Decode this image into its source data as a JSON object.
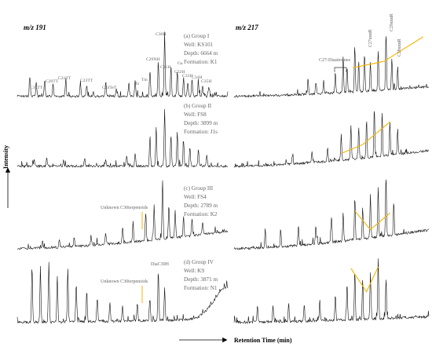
{
  "chart_data": {
    "type": "line",
    "panel_titles": {
      "left": "m/z 191",
      "right": "m/z 217"
    },
    "ylabel": "Intensity",
    "xlabel": "Retention Time (min)",
    "colors": {
      "trace": "#111111",
      "highlight": "#f4b400",
      "text": "#666666"
    },
    "groups": [
      {
        "id": "a",
        "info": [
          "(a)  Group I",
          "Well: KS101",
          "Depth: 6664 m",
          "Formation: K1"
        ],
        "left_peaks": [
          {
            "x": 0.06,
            "h": 0.3
          },
          {
            "x": 0.09,
            "h": 0.22
          },
          {
            "x": 0.13,
            "h": 0.26
          },
          {
            "x": 0.17,
            "h": 0.2
          },
          {
            "x": 0.23,
            "h": 0.24
          },
          {
            "x": 0.3,
            "h": 0.22
          },
          {
            "x": 0.33,
            "h": 0.18
          },
          {
            "x": 0.42,
            "h": 0.16
          },
          {
            "x": 0.47,
            "h": 0.12
          },
          {
            "x": 0.53,
            "h": 0.22
          },
          {
            "x": 0.56,
            "h": 0.26
          },
          {
            "x": 0.63,
            "h": 0.4
          },
          {
            "x": 0.67,
            "h": 0.55
          },
          {
            "x": 0.7,
            "h": 1.0
          },
          {
            "x": 0.73,
            "h": 0.48
          },
          {
            "x": 0.76,
            "h": 0.4
          },
          {
            "x": 0.79,
            "h": 0.3
          },
          {
            "x": 0.81,
            "h": 0.22
          },
          {
            "x": 0.83,
            "h": 0.28
          },
          {
            "x": 0.86,
            "h": 0.2
          },
          {
            "x": 0.88,
            "h": 0.18
          },
          {
            "x": 0.91,
            "h": 0.15
          }
        ],
        "right_peaks": [
          {
            "x": 0.38,
            "h": 0.22
          },
          {
            "x": 0.42,
            "h": 0.18
          },
          {
            "x": 0.46,
            "h": 0.2
          },
          {
            "x": 0.52,
            "h": 0.32
          },
          {
            "x": 0.56,
            "h": 0.55
          },
          {
            "x": 0.58,
            "h": 0.4
          },
          {
            "x": 0.62,
            "h": 0.7
          },
          {
            "x": 0.64,
            "h": 0.48
          },
          {
            "x": 0.67,
            "h": 0.6
          },
          {
            "x": 0.7,
            "h": 0.45
          },
          {
            "x": 0.74,
            "h": 0.62
          },
          {
            "x": 0.78,
            "h": 0.88
          },
          {
            "x": 0.81,
            "h": 0.5
          },
          {
            "x": 0.84,
            "h": 0.35
          }
        ],
        "right_baseline_rise": 0.15,
        "left_baseline_rise": 0.0,
        "v_markers": [
          {
            "x": 0.61,
            "y": 0.46
          },
          {
            "x": 0.77,
            "y": 0.56
          },
          {
            "x": 0.97,
            "y": 0.94
          }
        ]
      },
      {
        "id": "b",
        "info": [
          "(b) Group II",
          "Well: FS8",
          "Depth: 3899 m",
          "Formation: J1s"
        ],
        "left_peaks": [
          {
            "x": 0.08,
            "h": 0.1
          },
          {
            "x": 0.14,
            "h": 0.12
          },
          {
            "x": 0.22,
            "h": 0.1
          },
          {
            "x": 0.32,
            "h": 0.12
          },
          {
            "x": 0.42,
            "h": 0.1
          },
          {
            "x": 0.52,
            "h": 0.18
          },
          {
            "x": 0.56,
            "h": 0.22
          },
          {
            "x": 0.63,
            "h": 0.45
          },
          {
            "x": 0.66,
            "h": 0.62
          },
          {
            "x": 0.7,
            "h": 0.92
          },
          {
            "x": 0.73,
            "h": 0.5
          },
          {
            "x": 0.76,
            "h": 0.55
          },
          {
            "x": 0.79,
            "h": 0.4
          },
          {
            "x": 0.82,
            "h": 0.3
          },
          {
            "x": 0.86,
            "h": 0.28
          },
          {
            "x": 0.9,
            "h": 0.18
          }
        ],
        "right_peaks": [
          {
            "x": 0.3,
            "h": 0.14
          },
          {
            "x": 0.4,
            "h": 0.18
          },
          {
            "x": 0.48,
            "h": 0.22
          },
          {
            "x": 0.55,
            "h": 0.4
          },
          {
            "x": 0.6,
            "h": 0.55
          },
          {
            "x": 0.64,
            "h": 0.48
          },
          {
            "x": 0.68,
            "h": 0.6
          },
          {
            "x": 0.72,
            "h": 0.78
          },
          {
            "x": 0.76,
            "h": 0.7
          },
          {
            "x": 0.8,
            "h": 0.52
          },
          {
            "x": 0.84,
            "h": 0.4
          }
        ],
        "right_baseline_rise": 0.25,
        "left_baseline_rise": 0.0,
        "v_markers": [
          {
            "x": 0.55,
            "y": 0.22
          },
          {
            "x": 0.66,
            "y": 0.36
          },
          {
            "x": 0.8,
            "y": 0.72
          }
        ]
      },
      {
        "id": "c",
        "info": [
          "(c) Group III",
          "Well: FS4",
          "Depth: 2789 m",
          "Formation: K2"
        ],
        "annotation": "Unknown C30terpenoids",
        "left_peaks": [
          {
            "x": 0.12,
            "h": 0.1
          },
          {
            "x": 0.2,
            "h": 0.12
          },
          {
            "x": 0.27,
            "h": 0.14
          },
          {
            "x": 0.35,
            "h": 0.14
          },
          {
            "x": 0.42,
            "h": 0.16
          },
          {
            "x": 0.5,
            "h": 0.2
          },
          {
            "x": 0.55,
            "h": 0.3
          },
          {
            "x": 0.61,
            "h": 0.42
          },
          {
            "x": 0.65,
            "h": 0.52
          },
          {
            "x": 0.69,
            "h": 0.88
          },
          {
            "x": 0.72,
            "h": 0.5
          },
          {
            "x": 0.75,
            "h": 0.4
          },
          {
            "x": 0.79,
            "h": 0.3
          },
          {
            "x": 0.83,
            "h": 0.26
          },
          {
            "x": 0.88,
            "h": 0.2
          }
        ],
        "right_peaks": [
          {
            "x": 0.16,
            "h": 0.28
          },
          {
            "x": 0.24,
            "h": 0.24
          },
          {
            "x": 0.33,
            "h": 0.3
          },
          {
            "x": 0.42,
            "h": 0.28
          },
          {
            "x": 0.5,
            "h": 0.36
          },
          {
            "x": 0.56,
            "h": 0.45
          },
          {
            "x": 0.62,
            "h": 0.62
          },
          {
            "x": 0.66,
            "h": 0.48
          },
          {
            "x": 0.7,
            "h": 0.66
          },
          {
            "x": 0.74,
            "h": 0.76
          },
          {
            "x": 0.78,
            "h": 0.92
          },
          {
            "x": 0.82,
            "h": 0.5
          }
        ],
        "right_baseline_rise": 0.28,
        "left_baseline_rise": 0.26,
        "v_markers": [
          {
            "x": 0.62,
            "y": 0.58
          },
          {
            "x": 0.7,
            "y": 0.3
          },
          {
            "x": 0.8,
            "y": 0.55
          }
        ]
      },
      {
        "id": "d",
        "info": [
          "(d) Group IV",
          "Well: K9",
          "Depth: 3871 m",
          "Formation: N1"
        ],
        "annotation": "Unknown C30terpenoids",
        "annotation2": "DiaC30H",
        "left_peaks": [
          {
            "x": 0.07,
            "h": 0.8
          },
          {
            "x": 0.11,
            "h": 0.72
          },
          {
            "x": 0.15,
            "h": 0.85
          },
          {
            "x": 0.19,
            "h": 0.65
          },
          {
            "x": 0.24,
            "h": 0.75
          },
          {
            "x": 0.28,
            "h": 0.55
          },
          {
            "x": 0.33,
            "h": 0.45
          },
          {
            "x": 0.38,
            "h": 0.35
          },
          {
            "x": 0.44,
            "h": 0.28
          },
          {
            "x": 0.5,
            "h": 0.22
          },
          {
            "x": 0.57,
            "h": 0.26
          },
          {
            "x": 0.63,
            "h": 0.32
          },
          {
            "x": 0.67,
            "h": 0.7
          },
          {
            "x": 0.7,
            "h": 0.45
          }
        ],
        "right_peaks": [
          {
            "x": 0.12,
            "h": 0.24
          },
          {
            "x": 0.2,
            "h": 0.22
          },
          {
            "x": 0.28,
            "h": 0.26
          },
          {
            "x": 0.36,
            "h": 0.24
          },
          {
            "x": 0.44,
            "h": 0.3
          },
          {
            "x": 0.52,
            "h": 0.38
          },
          {
            "x": 0.58,
            "h": 0.52
          },
          {
            "x": 0.62,
            "h": 0.7
          },
          {
            "x": 0.66,
            "h": 0.58
          },
          {
            "x": 0.7,
            "h": 0.66
          },
          {
            "x": 0.74,
            "h": 0.86
          },
          {
            "x": 0.78,
            "h": 0.55
          }
        ],
        "right_baseline_rise": 0.08,
        "left_baseline_rise": 0.05,
        "left_end_hump": 0.45,
        "v_markers": [
          {
            "x": 0.6,
            "y": 0.78
          },
          {
            "x": 0.68,
            "y": 0.45
          },
          {
            "x": 0.74,
            "y": 0.8
          }
        ]
      }
    ],
    "left_a_labels": [
      "C19TT",
      "C20TT",
      "C21TT",
      "C23TT",
      "C24TeT",
      "Ts",
      "Tm",
      "C29NH",
      "C30H",
      "C31H",
      "Ga",
      "C32H",
      "C33H",
      "C34H",
      "C35H"
    ],
    "right_a_labels": [
      "C27-Diasteranes",
      "C27αααR",
      "C28αααR",
      "C29αααR"
    ]
  }
}
